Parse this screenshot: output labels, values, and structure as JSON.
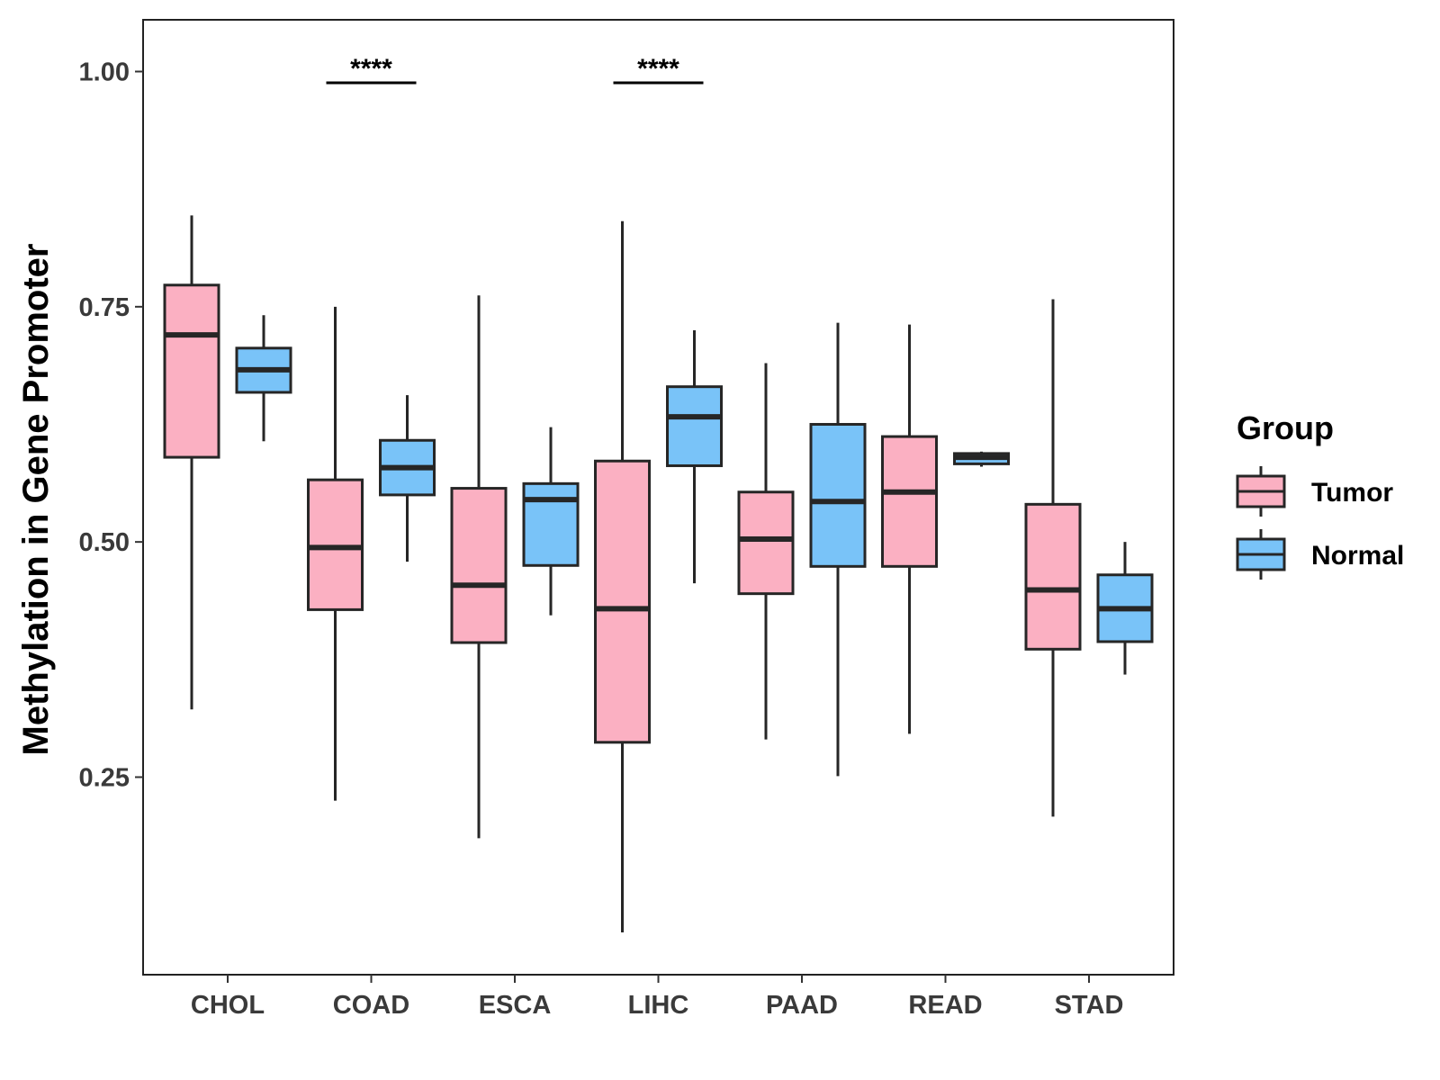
{
  "chart_data": {
    "type": "boxplot",
    "title": "",
    "xlabel": "",
    "ylabel": "Methylation in Gene Promoter",
    "ylim": [
      0.04,
      1.055
    ],
    "yticks": [
      0.25,
      0.5,
      0.75,
      1.0
    ],
    "ytick_labels": [
      "0.25",
      "0.50",
      "0.75",
      "1.00"
    ],
    "categories": [
      "CHOL",
      "COAD",
      "ESCA",
      "LIHC",
      "PAAD",
      "READ",
      "STAD"
    ],
    "legend": {
      "title": "Group",
      "position": "right",
      "entries": [
        "Tumor",
        "Normal"
      ]
    },
    "colors": {
      "Tumor": "#fbb0c2",
      "Normal": "#79c3f8",
      "stroke": "#262626"
    },
    "series": [
      {
        "name": "Tumor",
        "boxes": [
          {
            "category": "CHOL",
            "min": 0.322,
            "q1": 0.59,
            "median": 0.72,
            "q3": 0.773,
            "max": 0.847
          },
          {
            "category": "COAD",
            "min": 0.225,
            "q1": 0.428,
            "median": 0.494,
            "q3": 0.566,
            "max": 0.75
          },
          {
            "category": "ESCA",
            "min": 0.185,
            "q1": 0.393,
            "median": 0.454,
            "q3": 0.557,
            "max": 0.762
          },
          {
            "category": "LIHC",
            "min": 0.085,
            "q1": 0.287,
            "median": 0.429,
            "q3": 0.586,
            "max": 0.841
          },
          {
            "category": "PAAD",
            "min": 0.29,
            "q1": 0.445,
            "median": 0.503,
            "q3": 0.553,
            "max": 0.69
          },
          {
            "category": "READ",
            "min": 0.296,
            "q1": 0.474,
            "median": 0.553,
            "q3": 0.612,
            "max": 0.731
          },
          {
            "category": "STAD",
            "min": 0.208,
            "q1": 0.386,
            "median": 0.449,
            "q3": 0.54,
            "max": 0.758
          }
        ]
      },
      {
        "name": "Normal",
        "boxes": [
          {
            "category": "CHOL",
            "min": 0.607,
            "q1": 0.659,
            "median": 0.683,
            "q3": 0.706,
            "max": 0.741
          },
          {
            "category": "COAD",
            "min": 0.479,
            "q1": 0.55,
            "median": 0.579,
            "q3": 0.608,
            "max": 0.656
          },
          {
            "category": "ESCA",
            "min": 0.422,
            "q1": 0.475,
            "median": 0.545,
            "q3": 0.562,
            "max": 0.622
          },
          {
            "category": "LIHC",
            "min": 0.456,
            "q1": 0.581,
            "median": 0.633,
            "q3": 0.665,
            "max": 0.725
          },
          {
            "category": "PAAD",
            "min": 0.251,
            "q1": 0.474,
            "median": 0.543,
            "q3": 0.625,
            "max": 0.733
          },
          {
            "category": "READ",
            "min": 0.58,
            "q1": 0.583,
            "median": 0.59,
            "q3": 0.594,
            "max": 0.596
          },
          {
            "category": "STAD",
            "min": 0.359,
            "q1": 0.394,
            "median": 0.429,
            "q3": 0.465,
            "max": 0.5
          }
        ]
      }
    ],
    "annotations": [
      {
        "category": "COAD",
        "label": "****",
        "y": 0.988
      },
      {
        "category": "LIHC",
        "label": "****",
        "y": 0.988
      }
    ]
  }
}
